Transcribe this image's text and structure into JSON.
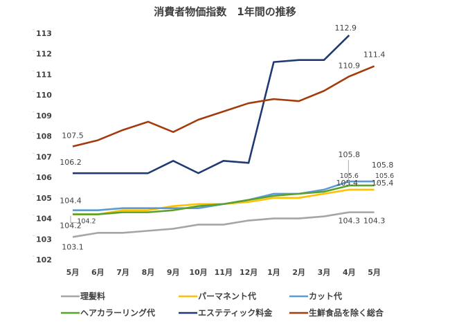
{
  "chart_data": {
    "type": "line",
    "title": "消費者物価指数　1年間の推移",
    "xlabel": "",
    "ylabel": "",
    "ylim": [
      102,
      113
    ],
    "yticks": [
      102,
      103,
      104,
      105,
      106,
      107,
      108,
      109,
      110,
      111,
      112,
      113
    ],
    "grid": false,
    "legend_position": "bottom",
    "categories": [
      "5月",
      "6月",
      "7月",
      "8月",
      "9月",
      "10月",
      "11月",
      "12月",
      "1月",
      "2月",
      "3月",
      "4月",
      "5月"
    ],
    "series": [
      {
        "name": "理髪料",
        "color": "#a5a5a5",
        "values": [
          103.1,
          103.3,
          103.3,
          103.4,
          103.5,
          103.7,
          103.7,
          103.9,
          104.0,
          104.0,
          104.1,
          104.3,
          104.3
        ],
        "labels": [
          {
            "index": 0,
            "text": "103.1"
          },
          {
            "index": 11,
            "text": "104.3"
          },
          {
            "index": 12,
            "text": "104.3"
          }
        ]
      },
      {
        "name": "パーマネント代",
        "color": "#ffc000",
        "values": [
          104.2,
          104.2,
          104.4,
          104.4,
          104.6,
          104.7,
          104.7,
          104.8,
          105.0,
          105.0,
          105.2,
          105.4,
          105.4
        ],
        "labels": [
          {
            "index": 0,
            "text": "104.2"
          },
          {
            "index": 11,
            "text": "105.4"
          },
          {
            "index": 12,
            "text": "105.4"
          }
        ]
      },
      {
        "name": "カット代",
        "color": "#5b9bd5",
        "values": [
          104.4,
          104.4,
          104.5,
          104.5,
          104.5,
          104.5,
          104.7,
          104.9,
          105.2,
          105.2,
          105.4,
          105.8,
          105.8
        ],
        "labels": [
          {
            "index": 0,
            "text": "104.4"
          },
          {
            "index": 11,
            "text": "105.8"
          },
          {
            "index": 12,
            "text": "105.8"
          }
        ]
      },
      {
        "name": "ヘアカラーリング代",
        "color": "#5aa02c",
        "values": [
          104.2,
          104.2,
          104.3,
          104.3,
          104.4,
          104.6,
          104.7,
          104.9,
          105.1,
          105.2,
          105.3,
          105.6,
          105.6
        ],
        "labels": [
          {
            "index": 0,
            "text": "104.2"
          },
          {
            "index": 11,
            "text": "105.6"
          },
          {
            "index": 12,
            "text": "105.6"
          }
        ]
      },
      {
        "name": "エステティック料金",
        "color": "#1f3a70",
        "values": [
          106.2,
          106.2,
          106.2,
          106.2,
          106.8,
          106.2,
          106.8,
          106.7,
          111.6,
          111.7,
          111.7,
          112.9,
          null
        ],
        "labels": [
          {
            "index": 0,
            "text": "106.2"
          },
          {
            "index": 11,
            "text": "112.9"
          }
        ]
      },
      {
        "name": "生鮮食品を除く総合",
        "color": "#a33b0c",
        "values": [
          107.5,
          107.8,
          108.3,
          108.7,
          108.2,
          108.8,
          109.2,
          109.6,
          109.8,
          109.7,
          110.2,
          110.9,
          111.4
        ],
        "labels": [
          {
            "index": 0,
            "text": "107.5"
          },
          {
            "index": 11,
            "text": "110.9"
          },
          {
            "index": 12,
            "text": "111.4"
          }
        ]
      }
    ]
  }
}
